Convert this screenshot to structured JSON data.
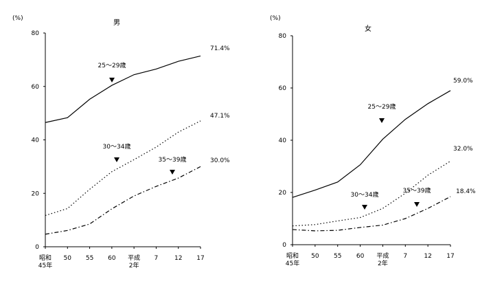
{
  "chart_data": [
    {
      "type": "line",
      "title": "男",
      "ylabel": "(%)",
      "ylim": [
        0,
        80
      ],
      "yticks": [
        "0",
        "20",
        "40",
        "60",
        "80"
      ],
      "xticks": [
        {
          "value": 0,
          "lines": [
            "昭和",
            "45年"
          ]
        },
        {
          "value": 5,
          "lines": [
            "50"
          ]
        },
        {
          "value": 10,
          "lines": [
            "55"
          ]
        },
        {
          "value": 15,
          "lines": [
            "60"
          ]
        },
        {
          "value": 20,
          "lines": [
            "平成",
            "2年"
          ]
        },
        {
          "value": 25,
          "lines": [
            "7"
          ]
        },
        {
          "value": 30,
          "lines": [
            "12"
          ]
        },
        {
          "value": 35,
          "lines": [
            "17"
          ]
        }
      ],
      "series": [
        {
          "name": "25～29歳",
          "style": "solid",
          "end_label": "71.4%",
          "x": [
            0,
            5,
            10,
            15,
            20,
            25,
            30,
            35
          ],
          "values": [
            46.5,
            48.3,
            55.2,
            60.4,
            64.4,
            66.5,
            69.4,
            71.4
          ]
        },
        {
          "name": "30～34歳",
          "style": "dotted",
          "end_label": "47.1%",
          "x": [
            0,
            5,
            10,
            15,
            20,
            25,
            30,
            35
          ],
          "values": [
            11.7,
            14.3,
            21.5,
            28.1,
            32.6,
            37.3,
            42.9,
            47.1
          ]
        },
        {
          "name": "35～39歳",
          "style": "dashdot",
          "end_label": "30.0%",
          "x": [
            0,
            5,
            10,
            15,
            20,
            25,
            30,
            35
          ],
          "values": [
            4.7,
            6.1,
            8.5,
            14.2,
            19.0,
            22.6,
            25.7,
            30.0
          ]
        }
      ]
    },
    {
      "type": "line",
      "title": "女",
      "ylabel": "(%)",
      "ylim": [
        0,
        80
      ],
      "yticks": [
        "0",
        "20",
        "40",
        "60",
        "80"
      ],
      "xticks": [
        {
          "value": 0,
          "lines": [
            "昭和",
            "45年"
          ]
        },
        {
          "value": 5,
          "lines": [
            "50"
          ]
        },
        {
          "value": 10,
          "lines": [
            "55"
          ]
        },
        {
          "value": 15,
          "lines": [
            "60"
          ]
        },
        {
          "value": 20,
          "lines": [
            "平成",
            "2年"
          ]
        },
        {
          "value": 25,
          "lines": [
            "7"
          ]
        },
        {
          "value": 30,
          "lines": [
            "12"
          ]
        },
        {
          "value": 35,
          "lines": [
            "17"
          ]
        }
      ],
      "series": [
        {
          "name": "25～29歳",
          "style": "solid",
          "end_label": "59.0%",
          "x": [
            0,
            5,
            10,
            15,
            20,
            25,
            30,
            35
          ],
          "values": [
            18.1,
            20.9,
            24.0,
            30.6,
            40.4,
            48.0,
            54.0,
            59.0
          ]
        },
        {
          "name": "30～34歳",
          "style": "dotted",
          "end_label": "32.0%",
          "x": [
            0,
            5,
            10,
            15,
            20,
            25,
            30,
            35
          ],
          "values": [
            7.2,
            7.7,
            9.1,
            10.4,
            13.9,
            19.7,
            26.6,
            32.0
          ]
        },
        {
          "name": "35～39歳",
          "style": "dashdot",
          "end_label": "18.4%",
          "x": [
            0,
            5,
            10,
            15,
            20,
            25,
            30,
            35
          ],
          "values": [
            5.8,
            5.3,
            5.5,
            6.6,
            7.5,
            10.0,
            13.9,
            18.4
          ]
        }
      ]
    }
  ]
}
